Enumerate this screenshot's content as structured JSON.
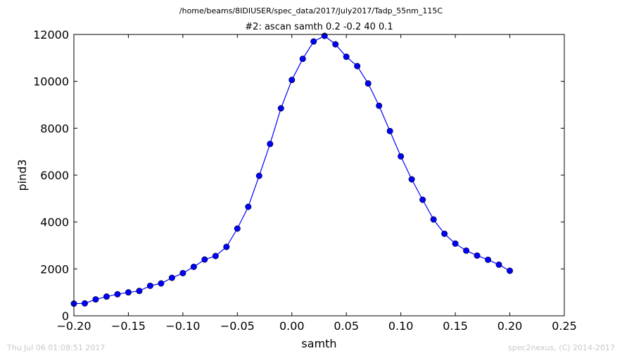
{
  "figure": {
    "suptitle": "/home/beams/8IDIUSER/spec_data/2017/July2017/Tadp_55nm_115C",
    "timestamp": "Thu Jul 06 01:08:51 2017",
    "credit": "spec2nexus, (C) 2014-2017"
  },
  "chart_data": {
    "type": "line",
    "title": "#2: ascan  samth 0.2 -0.2  40 0.1",
    "xlabel": "samth",
    "ylabel": "pind3",
    "xlim": [
      -0.2,
      0.25
    ],
    "ylim": [
      0,
      12000
    ],
    "xticks": [
      -0.2,
      -0.15,
      -0.1,
      -0.05,
      0.0,
      0.05,
      0.1,
      0.15,
      0.2,
      0.25
    ],
    "xtick_labels": [
      "−0.20",
      "−0.15",
      "−0.10",
      "−0.05",
      "0.00",
      "0.05",
      "0.10",
      "0.15",
      "0.20",
      "0.25"
    ],
    "yticks": [
      0,
      2000,
      4000,
      6000,
      8000,
      10000,
      12000
    ],
    "ytick_labels": [
      "0",
      "2000",
      "4000",
      "6000",
      "8000",
      "10000",
      "12000"
    ],
    "grid": false,
    "series": [
      {
        "color": "#0000ff",
        "marker": "circle",
        "x": [
          -0.2,
          -0.19,
          -0.18,
          -0.17,
          -0.16,
          -0.15,
          -0.14,
          -0.13,
          -0.12,
          -0.11,
          -0.1,
          -0.09,
          -0.08,
          -0.07,
          -0.06,
          -0.05,
          -0.04,
          -0.03,
          -0.02,
          -0.01,
          0.0,
          0.01,
          0.02,
          0.03,
          0.04,
          0.05,
          0.06,
          0.07,
          0.08,
          0.09,
          0.1,
          0.11,
          0.12,
          0.13,
          0.14,
          0.15,
          0.16,
          0.17,
          0.18,
          0.19,
          0.2
        ],
        "y": [
          520,
          530,
          700,
          820,
          920,
          1000,
          1060,
          1280,
          1380,
          1620,
          1820,
          2090,
          2400,
          2550,
          2940,
          3720,
          4650,
          5970,
          7330,
          8850,
          10060,
          10960,
          11700,
          11940,
          11580,
          11050,
          10650,
          9910,
          8960,
          7880,
          6800,
          5820,
          4950,
          4110,
          3500,
          3080,
          2780,
          2570,
          2390,
          2180,
          1920
        ]
      }
    ]
  }
}
